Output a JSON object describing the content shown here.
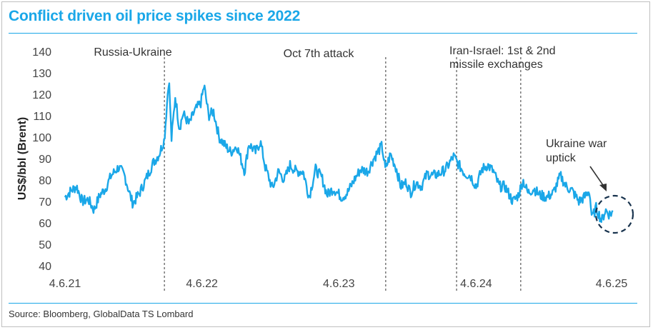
{
  "chart_data": {
    "type": "line",
    "title": "Conflict driven oil price spikes since 2022",
    "ylabel": "US$/bbl (Brent)",
    "xlabel": "",
    "ylim": [
      40,
      140
    ],
    "yticks": [
      40,
      50,
      60,
      70,
      80,
      90,
      100,
      110,
      120,
      130,
      140
    ],
    "xlim": [
      "2021-06-04",
      "2025-06-04"
    ],
    "xticks": [
      {
        "date": "2021-06-04",
        "label": "4.6.21"
      },
      {
        "date": "2022-06-04",
        "label": "4.6.22"
      },
      {
        "date": "2023-06-04",
        "label": "4.6.23"
      },
      {
        "date": "2024-06-04",
        "label": "4.6.24"
      },
      {
        "date": "2025-06-04",
        "label": "4.6.25"
      }
    ],
    "grid": false,
    "line_color": "#1aa7e8",
    "series": [
      {
        "points": [
          [
            "2021-06-04",
            72
          ],
          [
            "2021-06-20",
            75
          ],
          [
            "2021-07-05",
            77
          ],
          [
            "2021-07-20",
            70
          ],
          [
            "2021-08-05",
            71
          ],
          [
            "2021-08-20",
            66
          ],
          [
            "2021-09-05",
            73
          ],
          [
            "2021-09-20",
            76
          ],
          [
            "2021-10-05",
            82
          ],
          [
            "2021-10-25",
            86
          ],
          [
            "2021-11-10",
            82
          ],
          [
            "2021-11-26",
            72
          ],
          [
            "2021-12-02",
            69
          ],
          [
            "2021-12-20",
            74
          ],
          [
            "2022-01-05",
            80
          ],
          [
            "2022-01-25",
            88
          ],
          [
            "2022-02-10",
            92
          ],
          [
            "2022-02-24",
            99
          ],
          [
            "2022-03-08",
            128
          ],
          [
            "2022-03-15",
            99
          ],
          [
            "2022-03-25",
            119
          ],
          [
            "2022-04-05",
            104
          ],
          [
            "2022-04-15",
            111
          ],
          [
            "2022-05-01",
            106
          ],
          [
            "2022-05-15",
            112
          ],
          [
            "2022-06-01",
            116
          ],
          [
            "2022-06-10",
            124
          ],
          [
            "2022-06-22",
            110
          ],
          [
            "2022-07-05",
            112
          ],
          [
            "2022-07-20",
            100
          ],
          [
            "2022-08-05",
            96
          ],
          [
            "2022-08-20",
            93
          ],
          [
            "2022-09-05",
            96
          ],
          [
            "2022-09-26",
            84
          ],
          [
            "2022-10-07",
            97
          ],
          [
            "2022-10-25",
            93
          ],
          [
            "2022-11-07",
            98
          ],
          [
            "2022-11-20",
            86
          ],
          [
            "2022-12-09",
            76
          ],
          [
            "2022-12-25",
            84
          ],
          [
            "2023-01-10",
            80
          ],
          [
            "2023-01-25",
            87
          ],
          [
            "2023-02-10",
            84
          ],
          [
            "2023-03-01",
            84
          ],
          [
            "2023-03-17",
            72
          ],
          [
            "2023-04-03",
            85
          ],
          [
            "2023-04-20",
            81
          ],
          [
            "2023-05-04",
            73
          ],
          [
            "2023-05-20",
            76
          ],
          [
            "2023-06-12",
            72
          ],
          [
            "2023-06-27",
            74
          ],
          [
            "2023-07-15",
            80
          ],
          [
            "2023-08-01",
            85
          ],
          [
            "2023-08-20",
            84
          ],
          [
            "2023-09-05",
            90
          ],
          [
            "2023-09-27",
            96
          ],
          [
            "2023-10-06",
            85
          ],
          [
            "2023-10-20",
            92
          ],
          [
            "2023-11-05",
            85
          ],
          [
            "2023-11-16",
            77
          ],
          [
            "2023-12-01",
            79
          ],
          [
            "2023-12-12",
            74
          ],
          [
            "2023-12-27",
            79
          ],
          [
            "2024-01-10",
            77
          ],
          [
            "2024-01-26",
            83
          ],
          [
            "2024-02-10",
            82
          ],
          [
            "2024-02-27",
            83
          ],
          [
            "2024-03-15",
            85
          ],
          [
            "2024-04-05",
            91
          ],
          [
            "2024-04-19",
            87
          ],
          [
            "2024-05-05",
            83
          ],
          [
            "2024-05-20",
            82
          ],
          [
            "2024-06-04",
            77
          ],
          [
            "2024-06-20",
            85
          ],
          [
            "2024-07-05",
            87
          ],
          [
            "2024-07-20",
            84
          ],
          [
            "2024-08-05",
            77
          ],
          [
            "2024-08-20",
            77
          ],
          [
            "2024-09-10",
            70
          ],
          [
            "2024-09-25",
            73
          ],
          [
            "2024-10-07",
            80
          ],
          [
            "2024-10-20",
            74
          ],
          [
            "2024-11-05",
            76
          ],
          [
            "2024-11-20",
            73
          ],
          [
            "2024-12-10",
            72
          ],
          [
            "2024-12-27",
            74
          ],
          [
            "2025-01-15",
            82
          ],
          [
            "2025-01-30",
            77
          ],
          [
            "2025-02-15",
            75
          ],
          [
            "2025-03-05",
            70
          ],
          [
            "2025-03-20",
            72
          ],
          [
            "2025-04-02",
            75
          ],
          [
            "2025-04-09",
            62
          ],
          [
            "2025-04-20",
            67
          ],
          [
            "2025-05-05",
            61
          ],
          [
            "2025-05-15",
            66
          ],
          [
            "2025-05-25",
            64
          ],
          [
            "2025-06-04",
            65
          ]
        ]
      }
    ],
    "events": [
      {
        "date": "2022-02-24",
        "label": [
          "Russia-Ukraine"
        ]
      },
      {
        "date": "2023-10-07",
        "label": [
          "Oct 7th attack"
        ]
      },
      {
        "date": "2024-04-13",
        "label": [
          "Iran-Israel: 1st & 2nd",
          "missile exchanges"
        ]
      },
      {
        "date": "2024-10-01",
        "label": []
      }
    ],
    "annotations": [
      {
        "text": [
          "Ukraine war",
          "uptick"
        ],
        "target_date": "2025-05-15",
        "target_value": 64,
        "style": "dashed-circle-arrow"
      }
    ]
  },
  "source": "Source: Bloomberg, GlobalData TS Lombard"
}
